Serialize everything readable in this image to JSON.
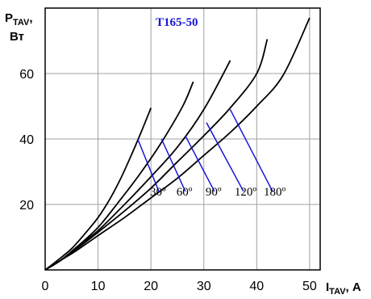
{
  "chart_data": {
    "type": "line",
    "title": "T165-50",
    "ylabel": {
      "main": "P",
      "sub": "TAV",
      "suffix": ",",
      "unit": "Вт"
    },
    "xlabel": {
      "main": "I",
      "sub": "TAV",
      "suffix": ", А"
    },
    "xlim": [
      0,
      52
    ],
    "ylim": [
      0,
      80
    ],
    "xticks": [
      0,
      10,
      20,
      30,
      40,
      50
    ],
    "yticks": [
      20,
      40,
      60
    ],
    "grid": true,
    "series": [
      {
        "name": "30º",
        "x": [
          0,
          2,
          5,
          8,
          10,
          12,
          14,
          16,
          18,
          20
        ],
        "y": [
          0,
          2.5,
          6.5,
          12,
          16,
          21,
          27,
          34,
          41.5,
          49.5
        ]
      },
      {
        "name": "60º",
        "x": [
          0,
          3,
          6,
          10,
          14,
          18,
          22,
          26,
          28
        ],
        "y": [
          0,
          3,
          7,
          13,
          21,
          29.5,
          39,
          50,
          57.5
        ]
      },
      {
        "name": "90º",
        "x": [
          0,
          3,
          6,
          10,
          15,
          20,
          25,
          30,
          35
        ],
        "y": [
          0,
          3,
          7,
          12,
          20,
          28.5,
          37.5,
          49,
          64
        ]
      },
      {
        "name": "120º",
        "x": [
          0,
          3,
          6,
          10,
          15,
          20,
          25,
          30,
          35,
          40,
          42
        ],
        "y": [
          0,
          3,
          6.5,
          11.5,
          18,
          25,
          33,
          41,
          49.5,
          60,
          70.5
        ]
      },
      {
        "name": "180º",
        "x": [
          0,
          3,
          6,
          10,
          15,
          20,
          25,
          30,
          35,
          40,
          45,
          50
        ],
        "y": [
          0,
          3,
          6,
          10.5,
          16,
          22,
          28,
          35,
          42,
          50,
          59.5,
          77
        ]
      }
    ],
    "annotations": [
      {
        "label": "30º",
        "from": [
          17.5,
          40
        ],
        "to": [
          21.5,
          24
        ]
      },
      {
        "label": "60º",
        "from": [
          22,
          40
        ],
        "to": [
          26.5,
          24
        ]
      },
      {
        "label": "90º",
        "from": [
          26.5,
          41
        ],
        "to": [
          32,
          24
        ]
      },
      {
        "label": "120º",
        "from": [
          30.5,
          45
        ],
        "to": [
          37.5,
          24
        ]
      },
      {
        "label": "180º",
        "from": [
          35,
          49
        ],
        "to": [
          43,
          24
        ]
      }
    ],
    "colors": {
      "curves": "#000000",
      "leaders": "#1515d8",
      "title": "#1515d8",
      "grid": "#a0a0a0"
    }
  }
}
